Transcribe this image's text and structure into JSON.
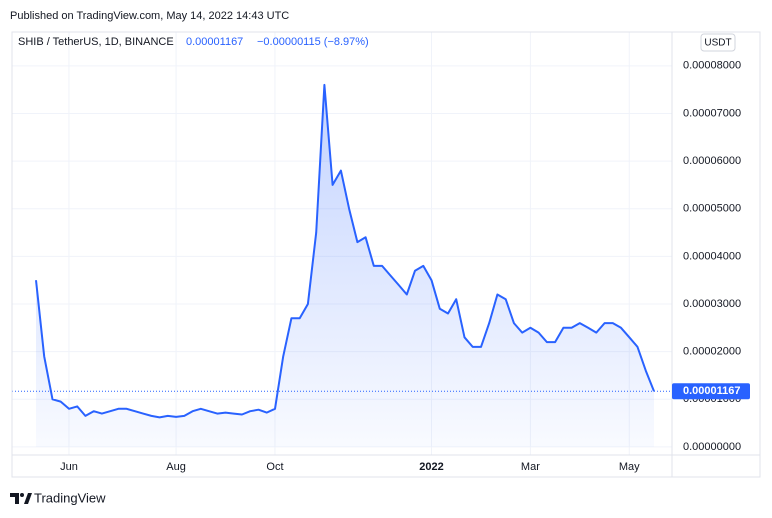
{
  "header": {
    "published": "Published on TradingView.com, May 14, 2022 14:43 UTC",
    "symbol": "SHIB / TetherUS, 1D, BINANCE",
    "price": "0.00001167",
    "change": "−0.00000115 (−8.97%)",
    "currency": "USDT"
  },
  "footer": {
    "brand": "TradingView"
  },
  "chart_data": {
    "type": "line",
    "categories": [
      null,
      null,
      null,
      null,
      "Jun",
      null,
      null,
      null,
      null,
      null,
      null,
      null,
      null,
      null,
      null,
      null,
      null,
      "Aug",
      null,
      null,
      null,
      null,
      null,
      null,
      null,
      null,
      null,
      null,
      null,
      "Oct",
      null,
      null,
      null,
      null,
      null,
      null,
      null,
      null,
      null,
      null,
      null,
      null,
      null,
      null,
      null,
      null,
      null,
      null,
      "2022",
      null,
      null,
      null,
      null,
      null,
      null,
      null,
      null,
      null,
      null,
      null,
      "Mar",
      null,
      null,
      null,
      null,
      null,
      null,
      null,
      null,
      null,
      null,
      null,
      "May",
      null,
      null,
      null
    ],
    "series": [
      {
        "name": "SHIB / TetherUS",
        "color": "#2962ff",
        "values": [
          3.5e-05,
          1.9e-05,
          1e-05,
          9.5e-06,
          8e-06,
          8.5e-06,
          6.5e-06,
          7.5e-06,
          7e-06,
          7.5e-06,
          8e-06,
          8e-06,
          7.5e-06,
          7e-06,
          6.5e-06,
          6.2e-06,
          6.5e-06,
          6.3e-06,
          6.5e-06,
          7.5e-06,
          8e-06,
          7.5e-06,
          7e-06,
          7.2e-06,
          7e-06,
          6.8e-06,
          7.5e-06,
          7.8e-06,
          7.2e-06,
          8e-06,
          1.9e-05,
          2.7e-05,
          2.7e-05,
          3e-05,
          4.5e-05,
          7.6e-05,
          5.5e-05,
          5.8e-05,
          5e-05,
          4.3e-05,
          4.4e-05,
          3.8e-05,
          3.8e-05,
          3.6e-05,
          3.4e-05,
          3.2e-05,
          3.7e-05,
          3.8e-05,
          3.5e-05,
          2.9e-05,
          2.8e-05,
          3.1e-05,
          2.3e-05,
          2.1e-05,
          2.1e-05,
          2.6e-05,
          3.2e-05,
          3.1e-05,
          2.6e-05,
          2.4e-05,
          2.5e-05,
          2.4e-05,
          2.2e-05,
          2.2e-05,
          2.5e-05,
          2.5e-05,
          2.6e-05,
          2.5e-05,
          2.4e-05,
          2.6e-05,
          2.6e-05,
          2.5e-05,
          2.3e-05,
          2.1e-05,
          1.6e-05,
          1.167e-05
        ]
      }
    ],
    "ylim": [
      -1.7e-06,
      8.71e-05
    ],
    "yticks": [
      {
        "value": 0,
        "label": "0.00000000"
      },
      {
        "value": 1e-05,
        "label": "0.00001000"
      },
      {
        "value": 2e-05,
        "label": "0.00002000"
      },
      {
        "value": 3e-05,
        "label": "0.00003000"
      },
      {
        "value": 4e-05,
        "label": "0.00004000"
      },
      {
        "value": 5e-05,
        "label": "0.00005000"
      },
      {
        "value": 6e-05,
        "label": "0.00006000"
      },
      {
        "value": 7e-05,
        "label": "0.00007000"
      },
      {
        "value": 8e-05,
        "label": "0.00008000"
      }
    ],
    "grid": true
  }
}
